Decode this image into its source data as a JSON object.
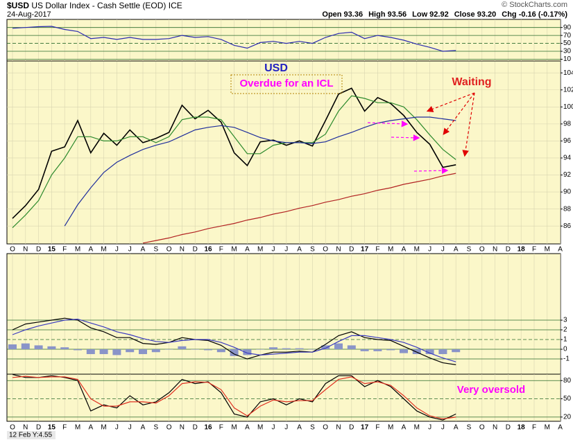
{
  "header": {
    "symbol": "$USD",
    "name": "US Dollar Index - Cash Settle (EOD) ICE",
    "date": "24-Aug-2017",
    "source": "© StockCharts.com",
    "quote": [
      "Open 93.36",
      "High 93.56",
      "Low 92.92",
      "Close 93.20",
      "Chg -0.16 (-0.17%)"
    ],
    "cursor_readout": "12 Feb Y:4.55"
  },
  "chart_data": [
    {
      "type": "line",
      "categories": [
        "O",
        "N",
        "D",
        "15",
        "F",
        "M",
        "A",
        "M",
        "J",
        "J",
        "A",
        "S",
        "O",
        "N",
        "D",
        "16",
        "F",
        "M",
        "A",
        "M",
        "J",
        "J",
        "A",
        "S",
        "O",
        "N",
        "D",
        "17",
        "F",
        "M",
        "A",
        "M",
        "J",
        "J",
        "A",
        "S",
        "O",
        "N",
        "D",
        "18",
        "F",
        "M",
        "A"
      ],
      "ylim": [
        83.9,
        105.4
      ],
      "yticks": [
        86,
        88,
        90,
        92,
        94,
        96,
        98,
        100,
        102,
        104
      ],
      "grid": true,
      "annotations": [
        "USD",
        "Overdue for an ICL",
        "Waiting"
      ],
      "series": [
        {
          "color": "#000000",
          "values": [
            86.9,
            88.4,
            90.3,
            94.8,
            95.3,
            98.4,
            94.6,
            96.9,
            95.5,
            97.3,
            95.8,
            96.3,
            97.0,
            100.2,
            98.6,
            99.6,
            98.2,
            94.6,
            93.1,
            95.9,
            96.1,
            95.5,
            96.0,
            95.4,
            98.4,
            101.5,
            102.2,
            99.5,
            101.1,
            100.4,
            99.0,
            97.0,
            95.6,
            92.9,
            93.2,
            null,
            null,
            null,
            null,
            null,
            null,
            null,
            null
          ]
        },
        {
          "color": "#2e8b2e",
          "values": [
            85.8,
            87.3,
            89.0,
            92.0,
            94.0,
            96.5,
            96.5,
            96.0,
            96.0,
            96.5,
            96.5,
            95.8,
            96.5,
            98.5,
            98.8,
            98.8,
            98.5,
            96.5,
            94.5,
            94.5,
            95.5,
            95.8,
            95.8,
            95.8,
            96.8,
            99.5,
            101.3,
            101.0,
            100.5,
            100.5,
            100.0,
            98.5,
            96.7,
            95.0,
            93.8,
            null,
            null,
            null,
            null,
            null,
            null,
            null,
            null
          ]
        },
        {
          "color": "#1f2e9c",
          "values": [
            null,
            null,
            null,
            null,
            86,
            88.5,
            90.5,
            92.3,
            93.5,
            94.3,
            95,
            95.5,
            95.9,
            96.6,
            97.3,
            97.6,
            97.8,
            97.6,
            97,
            96.4,
            96,
            95.8,
            95.8,
            95.7,
            95.9,
            96.5,
            97,
            97.6,
            98.1,
            98.4,
            98.6,
            98.8,
            98.8,
            98.6,
            98.4,
            null,
            null,
            null,
            null,
            null,
            null,
            null,
            null
          ]
        },
        {
          "color": "#b22222",
          "values": [
            null,
            null,
            null,
            null,
            null,
            null,
            null,
            null,
            null,
            null,
            84.0,
            84.3,
            84.6,
            85.0,
            85.3,
            85.7,
            86.0,
            86.3,
            86.7,
            87.0,
            87.4,
            87.7,
            88.1,
            88.4,
            88.8,
            89.1,
            89.5,
            89.8,
            90.2,
            90.5,
            90.9,
            91.2,
            91.5,
            91.9,
            92.2,
            null,
            null,
            null,
            null,
            null,
            null,
            null,
            null
          ]
        }
      ]
    },
    {
      "type": "line",
      "ylim": [
        5.6,
        110.4
      ],
      "yticks": [
        10,
        30,
        50,
        70,
        90
      ],
      "grid": true,
      "series": [
        {
          "color": "#2a2ab0",
          "values": [
            88,
            90,
            92,
            93,
            85,
            80,
            62,
            65,
            60,
            65,
            60,
            60,
            62,
            70,
            65,
            67,
            60,
            45,
            38,
            52,
            55,
            50,
            55,
            50,
            65,
            75,
            78,
            62,
            70,
            65,
            58,
            48,
            40,
            30,
            32,
            null,
            null,
            null,
            null,
            null,
            null,
            null,
            null
          ]
        }
      ]
    },
    {
      "type": "line",
      "ylim": [
        -2.57,
        9.86
      ],
      "yticks": [
        -1,
        0,
        1,
        2,
        3
      ],
      "grid": true,
      "series": [
        {
          "style": "bar",
          "color": "#8a94c8",
          "values": [
            0.5,
            0.6,
            0.4,
            0.3,
            0.2,
            -0.1,
            -0.5,
            -0.5,
            -0.6,
            -0.3,
            -0.5,
            -0.3,
            0,
            0.3,
            0,
            -0.1,
            -0.3,
            -0.7,
            -0.6,
            0,
            0.2,
            0.1,
            0.1,
            0,
            0.4,
            0.6,
            0.4,
            -0.2,
            -0.2,
            -0.1,
            -0.4,
            -0.5,
            -0.5,
            -0.5,
            -0.3,
            null,
            null,
            null,
            null,
            null,
            null,
            null,
            null
          ]
        },
        {
          "color": "#000000",
          "values": [
            2.0,
            2.6,
            2.8,
            3.0,
            3.2,
            3.0,
            2.2,
            1.8,
            1.2,
            1.2,
            0.6,
            0.5,
            0.7,
            1.2,
            1.0,
            0.9,
            0.4,
            -0.5,
            -1.0,
            -0.6,
            -0.3,
            -0.3,
            -0.2,
            -0.3,
            0.5,
            1.4,
            1.8,
            1.2,
            1.0,
            0.9,
            0.3,
            -0.3,
            -0.9,
            -1.4,
            -1.6,
            null,
            null,
            null,
            null,
            null,
            null,
            null,
            null
          ]
        },
        {
          "color": "#3a3ac0",
          "values": [
            1.5,
            2.0,
            2.4,
            2.7,
            3.0,
            3.1,
            2.7,
            2.3,
            1.8,
            1.5,
            1.1,
            0.8,
            0.7,
            0.9,
            1.0,
            1.0,
            0.7,
            0.2,
            -0.4,
            -0.6,
            -0.5,
            -0.4,
            -0.3,
            -0.3,
            0.1,
            0.8,
            1.4,
            1.4,
            1.2,
            1.0,
            0.7,
            0.2,
            -0.4,
            -0.9,
            -1.3,
            null,
            null,
            null,
            null,
            null,
            null,
            null,
            null
          ]
        }
      ]
    },
    {
      "type": "line",
      "ylim": [
        13,
        90.5
      ],
      "yticks": [
        20,
        50,
        80
      ],
      "grid": true,
      "annotations": [
        "Very oversold"
      ],
      "series": [
        {
          "color": "#000000",
          "values": [
            90,
            85,
            85,
            88,
            85,
            80,
            30,
            40,
            35,
            55,
            40,
            45,
            60,
            82,
            75,
            78,
            60,
            25,
            20,
            45,
            50,
            40,
            50,
            45,
            75,
            88,
            88,
            70,
            80,
            70,
            50,
            30,
            20,
            15,
            25,
            null,
            null,
            null,
            null,
            null,
            null,
            null,
            null
          ]
        },
        {
          "color": "#e03020",
          "values": [
            85,
            87,
            85,
            86,
            86,
            82,
            50,
            38,
            38,
            45,
            45,
            43,
            55,
            75,
            78,
            77,
            65,
            35,
            22,
            38,
            48,
            45,
            47,
            47,
            65,
            82,
            86,
            75,
            78,
            72,
            55,
            35,
            22,
            17,
            20,
            null,
            null,
            null,
            null,
            null,
            null,
            null,
            null
          ]
        }
      ]
    }
  ]
}
